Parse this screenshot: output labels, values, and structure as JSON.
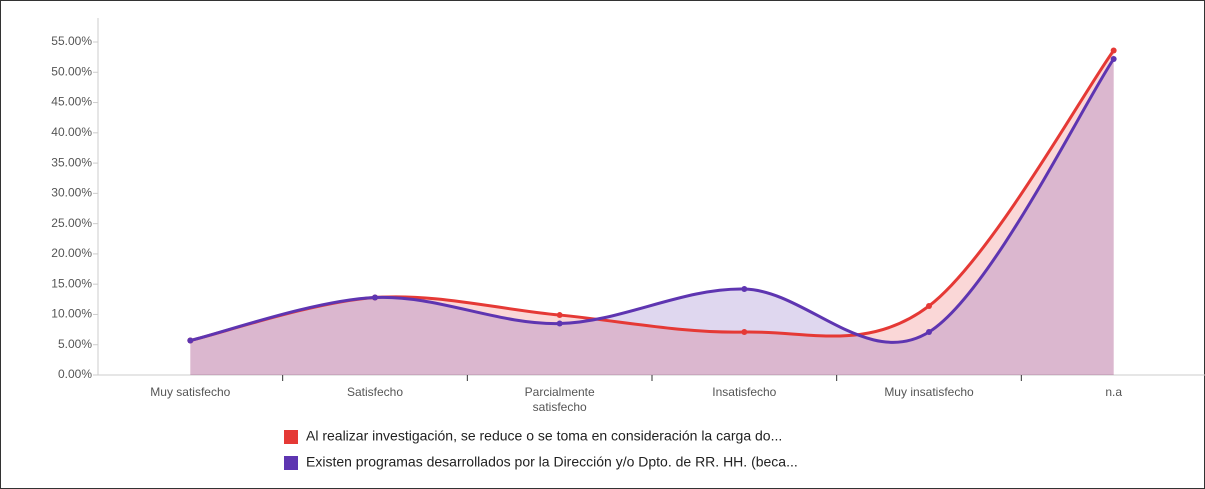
{
  "chart_data": {
    "type": "area",
    "categories": [
      "Muy satisfecho",
      "Satisfecho",
      "Parcialmente satisfecho",
      "Insatisfecho",
      "Muy insatisfecho",
      "n.a"
    ],
    "series": [
      {
        "name": "Al realizar investigación, se reduce o se toma en consideración la carga do...",
        "color": "#e53935",
        "values": [
          5.7,
          12.8,
          9.9,
          7.1,
          11.4,
          53.6
        ]
      },
      {
        "name": "Existen programas desarrollados por la Dirección y/o Dpto. de RR. HH. (beca...",
        "color": "#5e35b1",
        "values": [
          5.7,
          12.8,
          8.5,
          14.2,
          7.1,
          52.2
        ]
      }
    ],
    "ylim": [
      0,
      55
    ],
    "yticks": [
      {
        "value": 0,
        "label": "0.00%"
      },
      {
        "value": 5,
        "label": "5.00%"
      },
      {
        "value": 10,
        "label": "10.00%"
      },
      {
        "value": 15,
        "label": "15.00%"
      },
      {
        "value": 20,
        "label": "20.00%"
      },
      {
        "value": 25,
        "label": "25.00%"
      },
      {
        "value": 30,
        "label": "30.00%"
      },
      {
        "value": 35,
        "label": "35.00%"
      },
      {
        "value": 40,
        "label": "40.00%"
      },
      {
        "value": 45,
        "label": "45.00%"
      },
      {
        "value": 50,
        "label": "50.00%"
      },
      {
        "value": 55,
        "label": "55.00%"
      }
    ],
    "grid": false
  }
}
